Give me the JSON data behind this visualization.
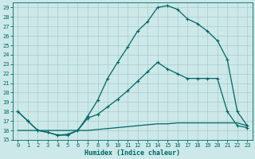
{
  "xlabel": "Humidex (Indice chaleur)",
  "bg_color": "#cce8e8",
  "grid_color": "#aacccc",
  "line_color": "#006666",
  "xlim": [
    -0.5,
    23.5
  ],
  "ylim": [
    15,
    29.5
  ],
  "yticks": [
    15,
    16,
    17,
    18,
    19,
    20,
    21,
    22,
    23,
    24,
    25,
    26,
    27,
    28,
    29
  ],
  "xticks": [
    0,
    1,
    2,
    3,
    4,
    5,
    6,
    7,
    8,
    9,
    10,
    11,
    12,
    13,
    14,
    15,
    16,
    17,
    18,
    19,
    20,
    21,
    22,
    23
  ],
  "curve1_x": [
    0,
    1,
    2,
    3,
    4,
    5,
    6,
    7,
    8,
    9,
    10,
    11,
    12,
    13,
    14,
    15,
    16,
    17,
    18,
    19,
    20,
    21,
    22,
    23
  ],
  "curve1_y": [
    18.0,
    17.0,
    16.0,
    15.8,
    15.5,
    15.5,
    16.0,
    17.5,
    19.2,
    21.5,
    23.2,
    24.8,
    26.5,
    27.5,
    29.0,
    29.2,
    28.8,
    27.8,
    27.3,
    26.5,
    25.5,
    23.5,
    18.0,
    16.5
  ],
  "curve2_x": [
    0,
    1,
    2,
    3,
    4,
    5,
    6,
    7,
    8,
    9,
    10,
    11,
    12,
    13,
    14,
    15,
    16,
    17,
    18,
    19,
    20,
    21,
    22,
    23
  ],
  "curve2_y": [
    18.0,
    17.0,
    16.0,
    15.8,
    15.5,
    15.6,
    16.0,
    17.3,
    17.7,
    18.5,
    19.3,
    20.2,
    21.2,
    22.2,
    23.2,
    22.5,
    22.0,
    21.5,
    21.5,
    21.5,
    21.5,
    18.0,
    16.5,
    16.3
  ],
  "curve3_x": [
    0,
    1,
    2,
    3,
    4,
    5,
    6,
    7,
    8,
    9,
    10,
    11,
    12,
    13,
    14,
    15,
    16,
    17,
    18,
    19,
    20,
    21,
    22,
    23
  ],
  "curve3_y": [
    16.0,
    16.0,
    16.0,
    16.0,
    16.0,
    16.0,
    16.0,
    16.0,
    16.1,
    16.2,
    16.3,
    16.4,
    16.5,
    16.6,
    16.7,
    16.7,
    16.8,
    16.8,
    16.8,
    16.8,
    16.8,
    16.8,
    16.8,
    16.5
  ]
}
